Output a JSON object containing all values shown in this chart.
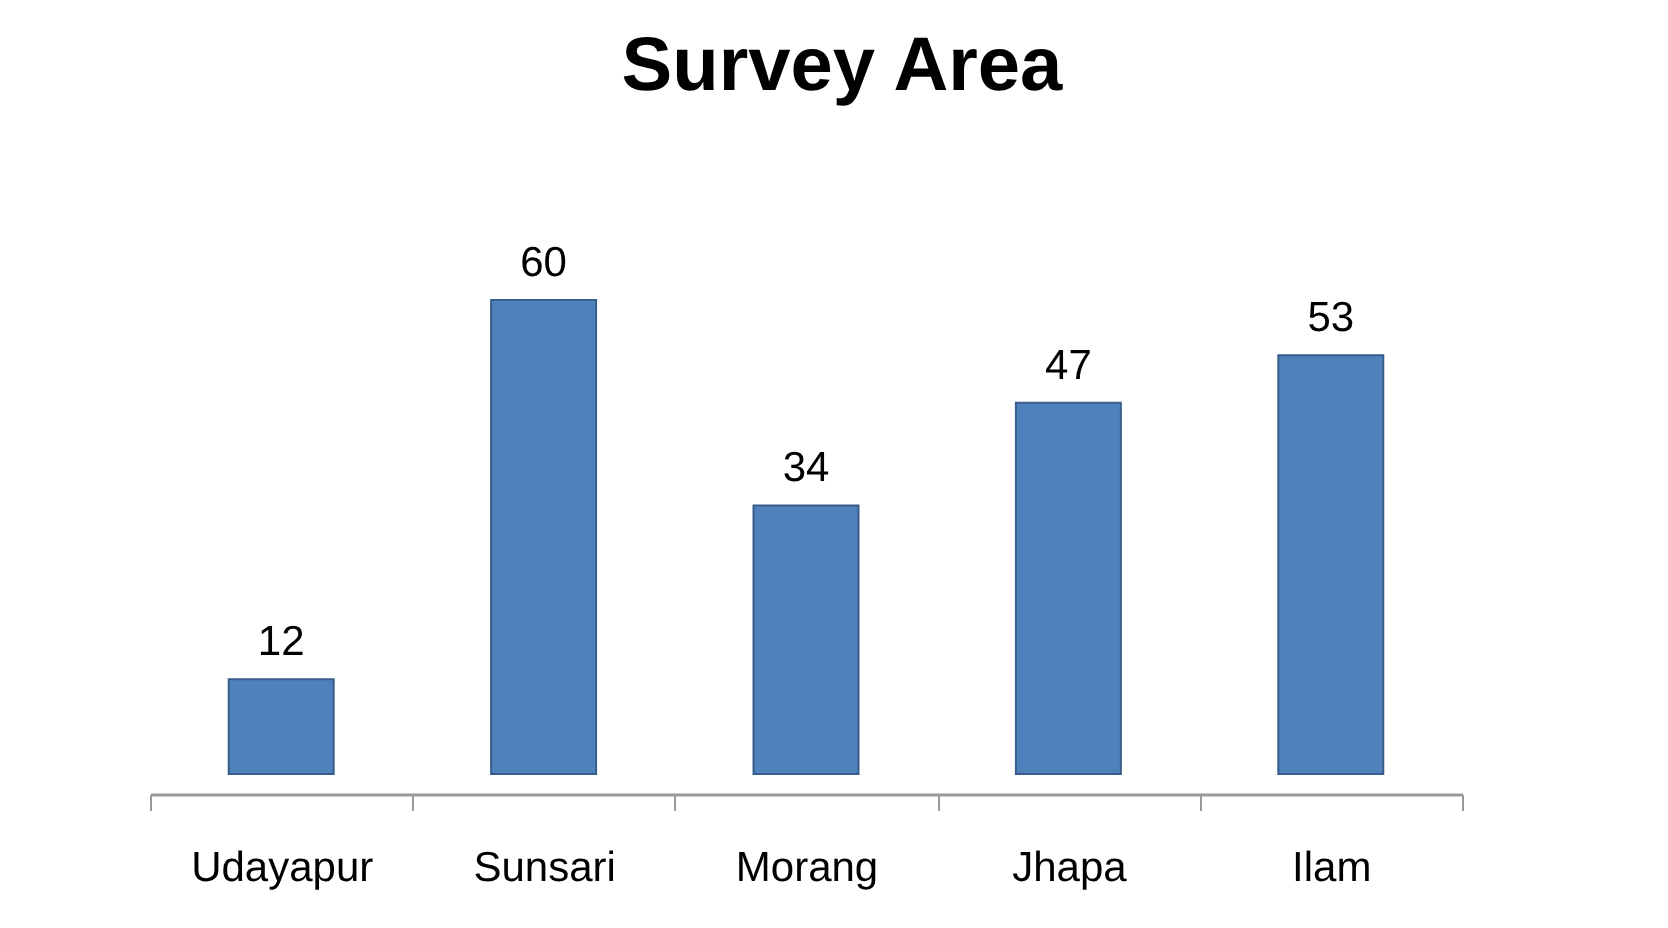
{
  "chart_data": {
    "type": "bar",
    "title": "Survey Area",
    "categories": [
      "Udayapur",
      "Sunsari",
      "Morang",
      "Jhapa",
      "Ilam"
    ],
    "values": [
      12,
      60,
      34,
      47,
      53
    ],
    "color": "#4f81bd",
    "data_labels": true
  }
}
